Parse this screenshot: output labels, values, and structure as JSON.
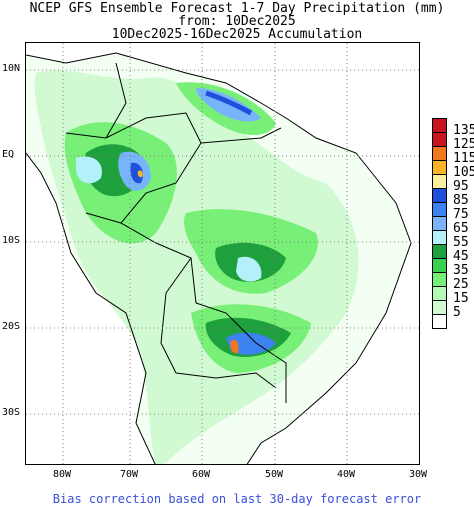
{
  "title": {
    "line1": "NCEP GFS Ensemble Forecast 1-7 Day Precipitation (mm)",
    "line2": "from: 10Dec2025",
    "line3": "10Dec2025-16Dec2025 Accumulation"
  },
  "axes": {
    "y_ticks": [
      "10N",
      "EQ",
      "10S",
      "20S",
      "30S"
    ],
    "x_ticks": [
      "80W",
      "70W",
      "60W",
      "50W",
      "40W",
      "30W"
    ]
  },
  "legend": {
    "levels": [
      "135",
      "125",
      "115",
      "105",
      "95",
      "85",
      "75",
      "65",
      "55",
      "45",
      "35",
      "25",
      "15",
      "5"
    ],
    "colors": [
      "#c8141e",
      "#f0781e",
      "#fab428",
      "#faf0a0",
      "#1e50dc",
      "#3c82f0",
      "#78b4fa",
      "#b4f0fa",
      "#1ea03c",
      "#37d250",
      "#78f078",
      "#b4fab4",
      "#d2fad2",
      "#ffffff"
    ],
    "top_color": "#c8141e"
  },
  "footer": "Bias correction based on last 30-day forecast error"
}
